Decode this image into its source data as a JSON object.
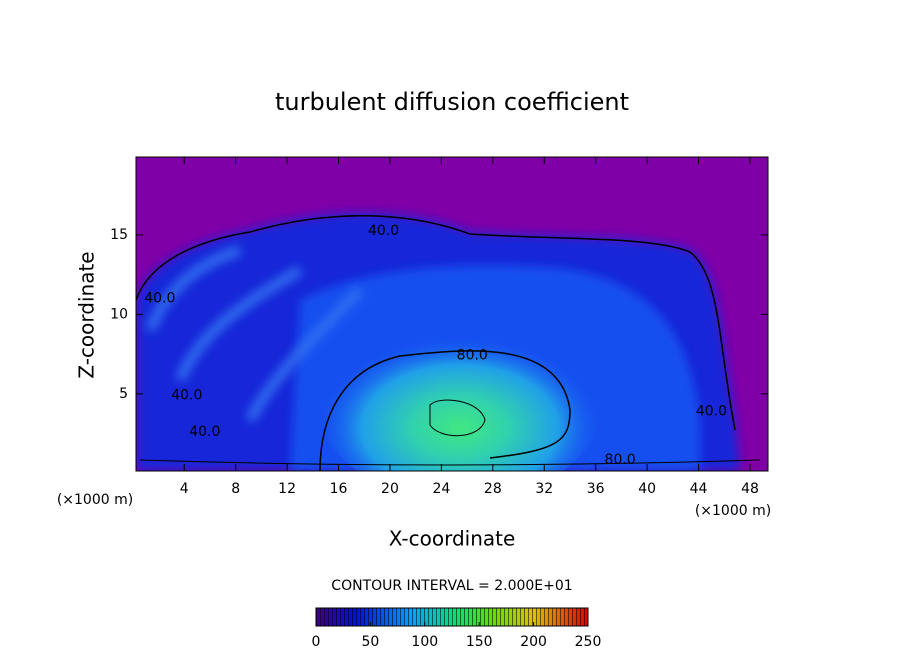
{
  "chart_data": {
    "type": "contour",
    "title": "turbulent diffusion coefficient",
    "x_label": "X-coordinate",
    "y_label": "Z-coordinate",
    "x_unit": "(×1000 m)",
    "xlim": [
      0.25,
      49.4
    ],
    "ylim": [
      0.15,
      19.9
    ],
    "xticks": [
      4,
      8,
      12,
      16,
      20,
      24,
      28,
      32,
      36,
      40,
      44,
      48
    ],
    "yticks": [
      5,
      10,
      15
    ],
    "contour_interval": "CONTOUR INTERVAL = 2.000E+01",
    "contour_labels": [
      {
        "value": 40,
        "label": "40.0",
        "x": 19.5,
        "y": 15.25
      },
      {
        "value": 40,
        "label": "40.0",
        "x": 2.1,
        "y": 11
      },
      {
        "value": 40,
        "label": "40.0",
        "x": 4.2,
        "y": 4.9
      },
      {
        "value": 40,
        "label": "40.0",
        "x": 5.6,
        "y": 2.6
      },
      {
        "value": 80,
        "label": "80.0",
        "x": 26.4,
        "y": 7.4
      },
      {
        "value": 80,
        "label": "80.0",
        "x": 37.9,
        "y": 0.85
      },
      {
        "value": 40,
        "label": "40.0",
        "x": 45,
        "y": 3.9
      }
    ],
    "colorbar": {
      "lim": [
        0,
        250
      ],
      "ticks": [
        0,
        50,
        100,
        150,
        200,
        250
      ]
    }
  }
}
